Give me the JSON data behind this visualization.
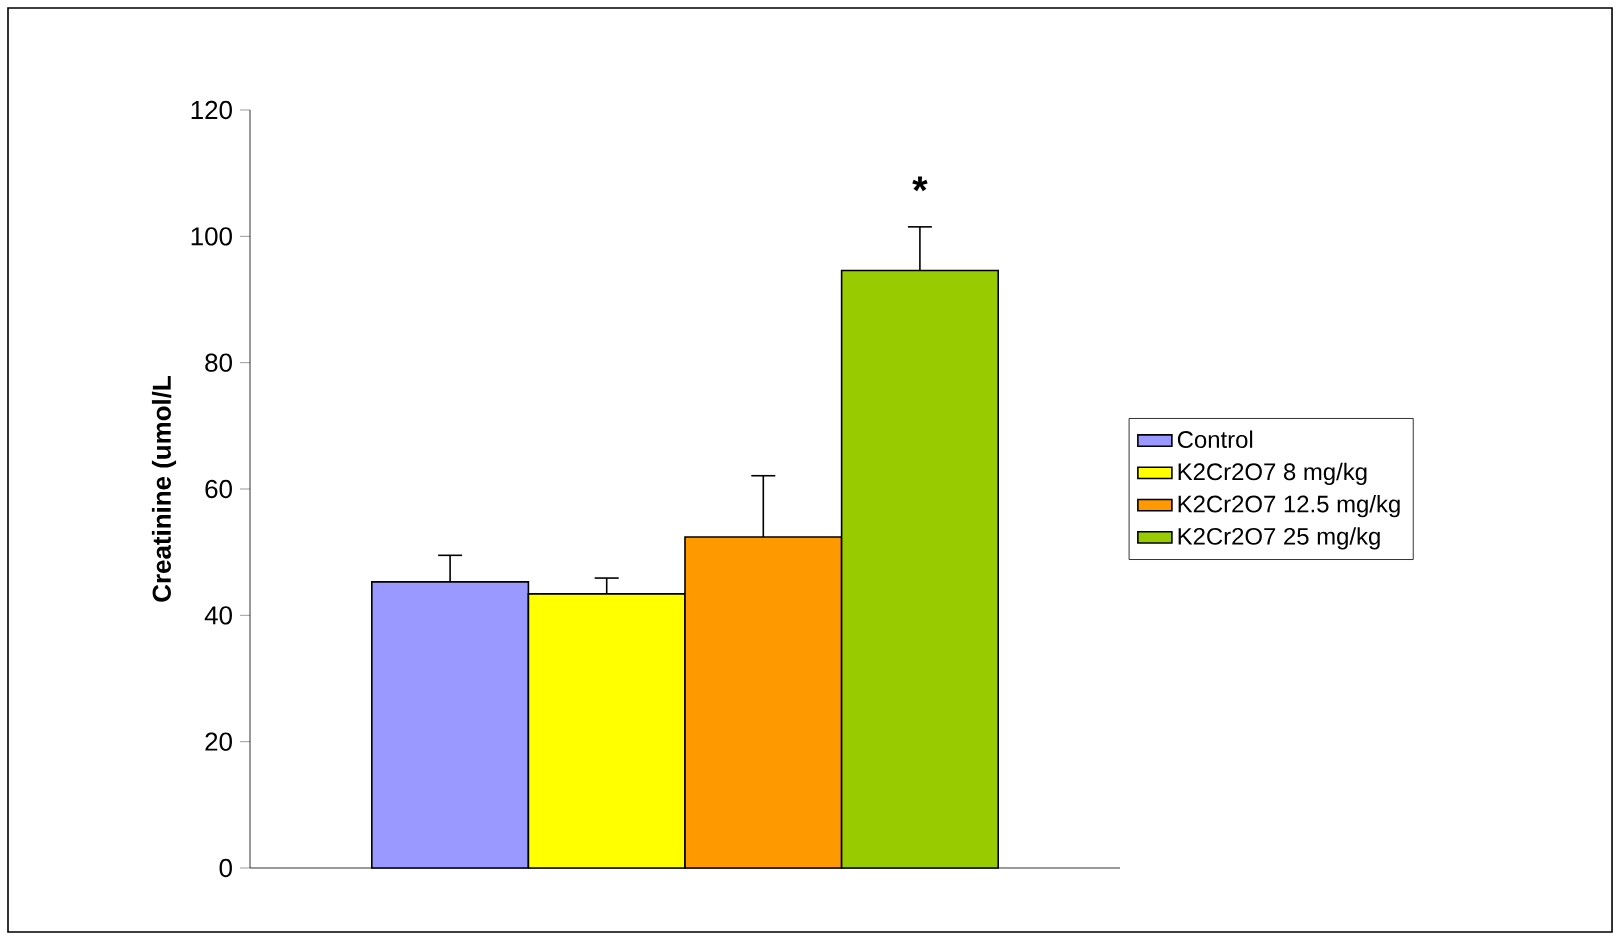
{
  "chart_data": {
    "type": "bar",
    "ylabel": "Creatinine (umol/L",
    "categories": [
      null
    ],
    "series": [
      {
        "name": "Control",
        "color": "#9999ff",
        "values": [
          45.3
        ],
        "errors": [
          [
            45.3,
            49.5
          ]
        ]
      },
      {
        "name": "K2Cr2O7 8 mg/kg",
        "color": "#ffff00",
        "values": [
          43.4
        ],
        "errors": [
          [
            43.4,
            45.9
          ]
        ]
      },
      {
        "name": "K2Cr2O7 12.5 mg/kg",
        "color": "#ff9900",
        "values": [
          52.4
        ],
        "errors": [
          [
            52.4,
            62.1
          ]
        ]
      },
      {
        "name": "K2Cr2O7 25 mg/kg",
        "color": "#99cc00",
        "values": [
          94.6
        ],
        "errors": [
          [
            94.6,
            101.5
          ]
        ]
      }
    ],
    "ylim": [
      0,
      120
    ],
    "yticks": [
      0,
      20,
      40,
      60,
      80,
      100,
      120
    ],
    "grid": false,
    "legend": "right",
    "annotations": [
      "*"
    ]
  }
}
